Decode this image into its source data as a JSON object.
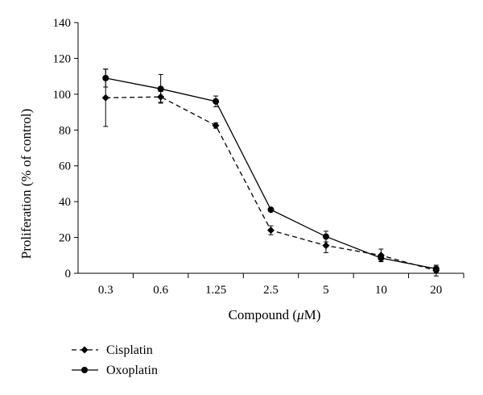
{
  "chart_data": {
    "type": "line",
    "title": "",
    "xlabel": "Compound (μM)",
    "xlabel_parts": [
      "Compound (",
      "μ",
      "M)"
    ],
    "ylabel": "Proliferation (% of control)",
    "categories": [
      "0.3",
      "0.6",
      "1.25",
      "2.5",
      "5",
      "10",
      "20"
    ],
    "ylim": [
      0,
      140
    ],
    "yticks": [
      "0",
      "20",
      "40",
      "60",
      "80",
      "100",
      "120",
      "140"
    ],
    "grid": false,
    "legend_position": "bottom-left",
    "series": [
      {
        "name": "Cisplatin",
        "style": "dashed",
        "marker": "diamond",
        "color": "#000000",
        "values": [
          98,
          98.5,
          82.5,
          24,
          15.5,
          10,
          1.5
        ],
        "error": [
          16,
          3,
          1.5,
          2.5,
          4,
          3.5,
          3
        ]
      },
      {
        "name": "Oxoplatin",
        "style": "solid",
        "marker": "circle",
        "color": "#000000",
        "values": [
          109,
          103,
          96,
          35.5,
          20.5,
          8.5,
          2.5
        ],
        "error": [
          5,
          8,
          3,
          0,
          3,
          2,
          2
        ]
      }
    ]
  }
}
